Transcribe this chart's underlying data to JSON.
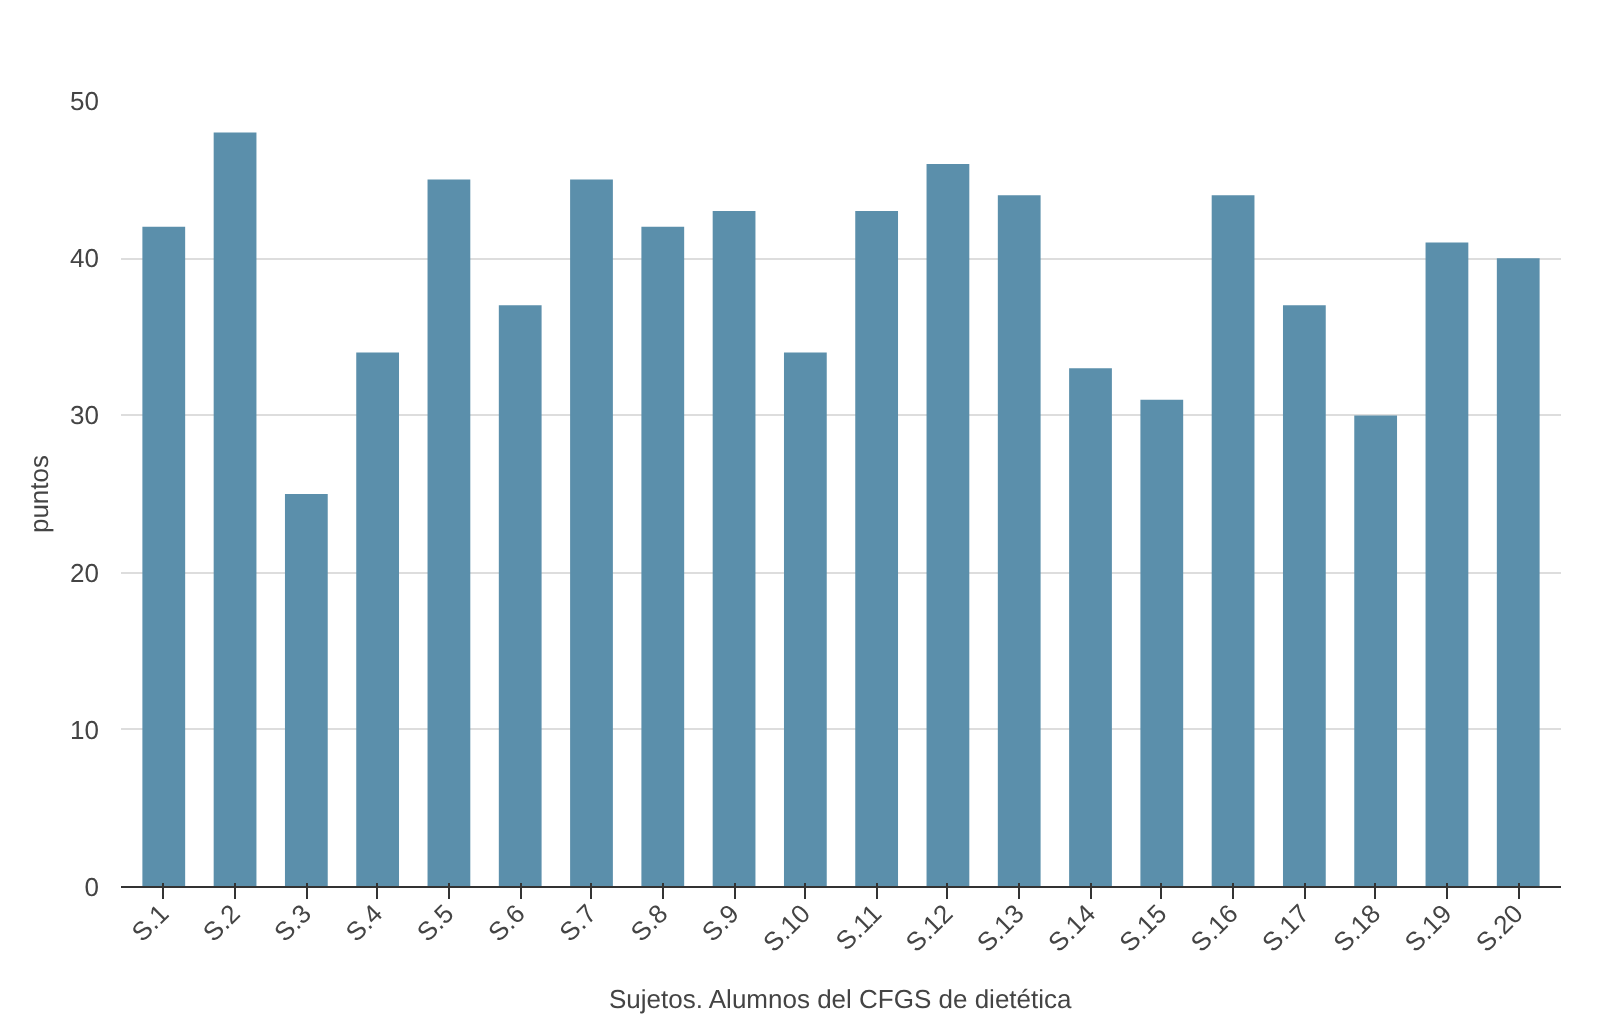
{
  "chart_data": {
    "type": "bar",
    "xlabel": "Sujetos. Alumnos del CFGS de dietética",
    "ylabel": "puntos",
    "categories": [
      "S.1",
      "S.2",
      "S.3",
      "S.4",
      "S.5",
      "S.6",
      "S.7",
      "S.8",
      "S.9",
      "S.10",
      "S.11",
      "S.12",
      "S.13",
      "S.14",
      "S.15",
      "S.16",
      "S.17",
      "S.18",
      "S.19",
      "S.20"
    ],
    "values": [
      42,
      48,
      25,
      34,
      45,
      37,
      45,
      42,
      43,
      34,
      43,
      46,
      44,
      33,
      31,
      44,
      37,
      30,
      41,
      40
    ],
    "color": "#5b8fab",
    "ylim": [
      0,
      50
    ],
    "yticks": [
      0,
      10,
      20,
      30,
      40,
      50
    ],
    "grid": "y"
  }
}
